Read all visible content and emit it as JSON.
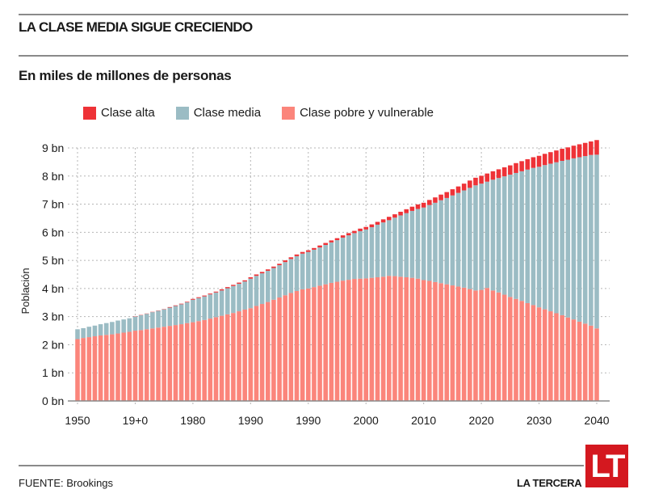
{
  "header": {
    "title": "LA CLASE MEDIA SIGUE CRECIENDO",
    "subtitle": "En miles de millones de personas"
  },
  "colors": {
    "alta": "#ee3237",
    "media": "#9bbcc4",
    "pobre": "#fb857b",
    "grid": "#b5b5b5",
    "axis": "#8a8a8a",
    "brand": "#d4181f"
  },
  "footer": {
    "source": "FUENTE: Brookings",
    "brand": "LA TERCERA",
    "logo": "LT"
  },
  "chart_data": {
    "type": "bar",
    "stacked": true,
    "title": "LA CLASE MEDIA SIGUE CRECIENDO",
    "subtitle": "En miles de millones de personas",
    "xlabel": "",
    "ylabel": "Población",
    "ylim": [
      0,
      9
    ],
    "grid": true,
    "legend_position": "top",
    "y_ticks": [
      "0 bn",
      "1 bn",
      "2 bn",
      "3 bn",
      "4 bn",
      "5 bn",
      "6 bn",
      "7 bn",
      "8 bn",
      "9 bn"
    ],
    "x_tick_labels": [
      "1950",
      "19+0",
      "1980",
      "1990",
      "1990",
      "2000",
      "2010",
      "2020",
      "2030",
      "2040"
    ],
    "x_start": 1950,
    "x_end": 2040,
    "legend": [
      "Clase alta",
      "Clase media",
      "Clase pobre y vulnerable"
    ],
    "series": [
      {
        "name": "Clase pobre y vulnerable",
        "key": "pobre",
        "values": [
          2.2,
          2.24,
          2.27,
          2.3,
          2.33,
          2.35,
          2.37,
          2.4,
          2.43,
          2.46,
          2.5,
          2.52,
          2.55,
          2.58,
          2.61,
          2.64,
          2.67,
          2.7,
          2.73,
          2.77,
          2.8,
          2.84,
          2.88,
          2.93,
          2.98,
          3.03,
          3.08,
          3.13,
          3.19,
          3.25,
          3.3,
          3.38,
          3.45,
          3.52,
          3.6,
          3.68,
          3.76,
          3.84,
          3.91,
          3.97,
          4.0,
          4.05,
          4.1,
          4.15,
          4.2,
          4.24,
          4.28,
          4.31,
          4.34,
          4.35,
          4.36,
          4.38,
          4.4,
          4.42,
          4.45,
          4.44,
          4.42,
          4.4,
          4.38,
          4.35,
          4.3,
          4.27,
          4.23,
          4.19,
          4.15,
          4.11,
          4.07,
          4.03,
          3.98,
          3.93,
          3.95,
          4.02,
          3.93,
          3.86,
          3.78,
          3.7,
          3.63,
          3.56,
          3.48,
          3.41,
          3.33,
          3.26,
          3.19,
          3.12,
          3.05,
          2.97,
          2.9,
          2.82,
          2.75,
          2.68,
          2.58
        ]
      },
      {
        "name": "Clase media",
        "key": "media",
        "values": [
          0.35,
          0.35,
          0.37,
          0.38,
          0.4,
          0.42,
          0.44,
          0.46,
          0.47,
          0.48,
          0.5,
          0.53,
          0.55,
          0.58,
          0.6,
          0.62,
          0.65,
          0.68,
          0.71,
          0.74,
          0.8,
          0.82,
          0.84,
          0.86,
          0.88,
          0.9,
          0.93,
          0.96,
          0.98,
          1.0,
          1.05,
          1.07,
          1.09,
          1.11,
          1.13,
          1.15,
          1.18,
          1.21,
          1.24,
          1.27,
          1.3,
          1.33,
          1.36,
          1.4,
          1.44,
          1.48,
          1.53,
          1.58,
          1.63,
          1.69,
          1.74,
          1.8,
          1.87,
          1.93,
          1.98,
          2.08,
          2.18,
          2.28,
          2.38,
          2.48,
          2.58,
          2.7,
          2.82,
          2.95,
          3.07,
          3.2,
          3.33,
          3.46,
          3.6,
          3.74,
          3.78,
          3.78,
          3.94,
          4.07,
          4.21,
          4.35,
          4.48,
          4.61,
          4.75,
          4.88,
          5.0,
          5.13,
          5.25,
          5.37,
          5.49,
          5.61,
          5.73,
          5.85,
          5.96,
          6.07,
          6.18
        ]
      },
      {
        "name": "Clase alta",
        "key": "alta",
        "values": [
          0.0,
          0.0,
          0.0,
          0.0,
          0.0,
          0.0,
          0.0,
          0.0,
          0.0,
          0.0,
          0.01,
          0.01,
          0.01,
          0.01,
          0.01,
          0.01,
          0.02,
          0.02,
          0.02,
          0.02,
          0.03,
          0.03,
          0.03,
          0.03,
          0.03,
          0.04,
          0.04,
          0.04,
          0.04,
          0.04,
          0.05,
          0.05,
          0.05,
          0.05,
          0.05,
          0.05,
          0.06,
          0.06,
          0.06,
          0.06,
          0.06,
          0.06,
          0.07,
          0.07,
          0.07,
          0.07,
          0.08,
          0.08,
          0.08,
          0.09,
          0.09,
          0.1,
          0.1,
          0.11,
          0.12,
          0.12,
          0.13,
          0.14,
          0.15,
          0.16,
          0.17,
          0.18,
          0.19,
          0.2,
          0.21,
          0.22,
          0.23,
          0.24,
          0.26,
          0.27,
          0.28,
          0.29,
          0.3,
          0.31,
          0.32,
          0.33,
          0.35,
          0.36,
          0.37,
          0.38,
          0.39,
          0.4,
          0.41,
          0.42,
          0.43,
          0.44,
          0.45,
          0.46,
          0.47,
          0.48,
          0.52
        ]
      }
    ]
  }
}
